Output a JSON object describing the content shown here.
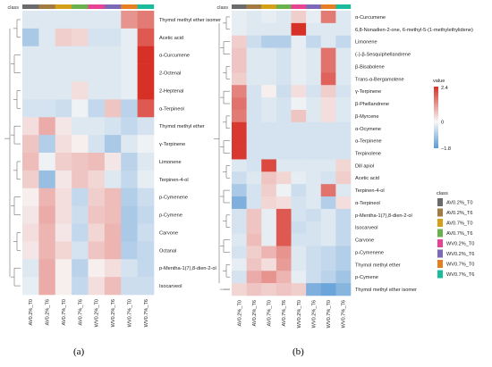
{
  "legend": {
    "class_title": "class",
    "value_title": "value",
    "value_ticks": [
      "2.4",
      "0",
      "−1.8"
    ],
    "color_low": "#5b9bd5",
    "color_mid": "#f7f7f7",
    "color_high": "#d73027"
  },
  "classes": [
    {
      "label": "AV0.2%_T0",
      "color": "#6b6b6b"
    },
    {
      "label": "AV0.2%_T6",
      "color": "#a37a42"
    },
    {
      "label": "AV0.7%_T0",
      "color": "#d4a017"
    },
    {
      "label": "AV0.7%_T6",
      "color": "#6ab04c"
    },
    {
      "label": "WV0.2%_T0",
      "color": "#e84393"
    },
    {
      "label": "WV0.2%_T6",
      "color": "#7b68b6"
    },
    {
      "label": "WV0.7%_T0",
      "color": "#e67e22"
    },
    {
      "label": "WV0.7%_T6",
      "color": "#1abc9c"
    }
  ],
  "chart_data": [
    {
      "type": "heatmap",
      "panel": "(a)",
      "columns": [
        "AV0.2%_T0",
        "AV0.2%_T6",
        "AV0.7%_T0",
        "AV0.7%_T6",
        "WV0.2%_T0",
        "WV0.2%_T6",
        "WV0.7%_T0",
        "WV0.7%_T6"
      ],
      "col_class_index": [
        0,
        1,
        2,
        3,
        4,
        5,
        6,
        7
      ],
      "rows": [
        "Thymol methyl ether isomer",
        "Acetic acid",
        "α-Curcumene",
        "2-Octenal",
        "2-Heptenal",
        "α-Terpineol",
        "Thymol methyl ether",
        "γ-Terpinene",
        "Limonene",
        "Terpinen-4-ol",
        "p-Cymenene",
        "p-Cymene",
        "Carvone",
        "Octanal",
        "p-Mentha-1(7),8-dien-2-ol",
        "Isocarveol"
      ],
      "values": [
        [
          -0.3,
          -0.3,
          -0.3,
          -0.3,
          -0.3,
          -0.3,
          1.2,
          1.5
        ],
        [
          -0.9,
          -0.3,
          0.5,
          0.4,
          -0.4,
          -0.4,
          -0.2,
          1.9
        ],
        [
          -0.3,
          -0.3,
          -0.3,
          -0.3,
          -0.3,
          -0.3,
          -0.2,
          2.4
        ],
        [
          -0.3,
          -0.3,
          -0.3,
          -0.3,
          -0.3,
          -0.3,
          -0.2,
          2.4
        ],
        [
          -0.3,
          -0.3,
          -0.3,
          0.3,
          -0.3,
          -0.3,
          -0.2,
          2.4
        ],
        [
          -0.4,
          -0.4,
          -0.5,
          -0.1,
          -0.6,
          0.6,
          -0.7,
          1.9
        ],
        [
          0.3,
          0.9,
          0.2,
          -0.3,
          -0.3,
          -0.4,
          -0.6,
          -0.4
        ],
        [
          0.6,
          -0.8,
          0.3,
          0.1,
          -0.4,
          -0.9,
          -0.3,
          -0.1
        ],
        [
          0.7,
          -0.1,
          0.5,
          0.6,
          0.7,
          0.2,
          -0.7,
          -0.3
        ],
        [
          0.5,
          -1.1,
          0.2,
          0.6,
          0.4,
          -0.3,
          -0.6,
          -0.2
        ],
        [
          0.1,
          0.8,
          0.3,
          -0.6,
          0.5,
          0.7,
          -0.8,
          -0.5
        ],
        [
          0.2,
          0.9,
          0.3,
          -0.5,
          0.6,
          0.7,
          -0.9,
          -0.6
        ],
        [
          0.3,
          0.8,
          0.2,
          -0.6,
          0.4,
          0.8,
          -0.9,
          -0.5
        ],
        [
          0.2,
          0.8,
          0.4,
          -0.4,
          0.6,
          0.8,
          -0.8,
          -0.6
        ],
        [
          -0.3,
          0.9,
          0.1,
          -0.7,
          0.1,
          0.3,
          -0.4,
          -0.6
        ],
        [
          -0.2,
          0.9,
          0.1,
          -0.6,
          0.3,
          0.7,
          -0.5,
          -0.5
        ]
      ],
      "vmin": -1.8,
      "vmax": 2.4
    },
    {
      "type": "heatmap",
      "panel": "(b)",
      "columns": [
        "AV0.2%_T0",
        "AV0.2%_T6",
        "AV0.7%_T0",
        "AV0.7%_T6",
        "WV0.2%_T0",
        "WV0.2%_T6",
        "WV0.7%_T0",
        "WV0.7%_T6"
      ],
      "col_class_index": [
        0,
        1,
        2,
        3,
        4,
        5,
        6,
        7
      ],
      "rows": [
        "α-Curcumene",
        "6,8-Nonadien-2-one, 6-methyl-5-(1-methylethylidene)",
        "Limonene",
        "(-)-β-Sesquiphellandrene",
        "β-Bisabolene",
        "Trans-α-Bergamotene",
        "γ-Terpinene",
        "β-Phellandrene",
        "β-Myrcene",
        "α-Ocymene",
        "α-Terpinene",
        "Terpinolene",
        "Dill apiol",
        "Acetic acid",
        "Terpinen-4-ol",
        "α-Terpineol",
        "p-Mentha-1(7),8-dien-2-ol",
        "Isocarveol",
        "Carvone",
        "p-Cymenene",
        "Thymol methyl ether",
        "p-Cymene",
        "Thymol methyl ether isomer"
      ],
      "values": [
        [
          -0.2,
          -0.3,
          -0.2,
          -0.3,
          0.5,
          -0.2,
          1.5,
          -0.3
        ],
        [
          -0.2,
          -0.3,
          -0.3,
          -0.3,
          2.4,
          -0.3,
          -0.3,
          -0.3
        ],
        [
          0.5,
          -0.5,
          -0.8,
          -0.8,
          -0.2,
          -0.6,
          -0.3,
          -0.6
        ],
        [
          0.6,
          -0.3,
          -0.3,
          -0.4,
          -0.2,
          -0.3,
          1.6,
          -0.3
        ],
        [
          0.6,
          -0.3,
          -0.3,
          -0.4,
          -0.2,
          -0.3,
          1.6,
          -0.3
        ],
        [
          0.5,
          -0.3,
          -0.3,
          -0.4,
          -0.2,
          -0.3,
          1.8,
          -0.3
        ],
        [
          1.4,
          -0.4,
          0.1,
          -0.5,
          0.3,
          -0.4,
          0.5,
          -0.4
        ],
        [
          1.6,
          -0.4,
          -0.3,
          -0.4,
          -0.1,
          -0.3,
          0.3,
          -0.3
        ],
        [
          1.5,
          -0.4,
          -0.3,
          -0.4,
          0.6,
          -0.3,
          0.3,
          -0.3
        ],
        [
          2.3,
          -0.4,
          -0.4,
          -0.4,
          -0.4,
          -0.4,
          -0.4,
          -0.4
        ],
        [
          2.3,
          -0.4,
          -0.4,
          -0.4,
          -0.4,
          -0.4,
          -0.4,
          -0.4
        ],
        [
          2.3,
          -0.4,
          -0.4,
          -0.4,
          -0.4,
          -0.4,
          -0.4,
          -0.4
        ],
        [
          -0.3,
          -0.4,
          2.1,
          -0.3,
          -0.3,
          -0.3,
          -0.3,
          0.4
        ],
        [
          -0.5,
          -0.3,
          0.6,
          0.4,
          -0.2,
          -0.3,
          -0.4,
          0.5
        ],
        [
          -0.9,
          -0.4,
          0.5,
          -0.1,
          -0.5,
          -0.3,
          1.6,
          -0.3
        ],
        [
          -1.4,
          -0.4,
          0.4,
          0.3,
          -0.4,
          -0.3,
          -0.8,
          0.3
        ],
        [
          -0.4,
          0.6,
          -0.2,
          1.9,
          -0.4,
          -0.5,
          -0.3,
          -0.6
        ],
        [
          -0.4,
          0.6,
          -0.2,
          1.9,
          -0.5,
          -0.4,
          -0.3,
          -0.6
        ],
        [
          -0.3,
          0.7,
          -0.2,
          1.9,
          -0.4,
          -0.4,
          -0.3,
          -0.6
        ],
        [
          -0.4,
          0.5,
          0.8,
          1.2,
          -0.3,
          -0.5,
          -0.6,
          -0.8
        ],
        [
          -0.2,
          0.6,
          0.3,
          1.1,
          -0.3,
          -0.5,
          -0.6,
          -0.8
        ],
        [
          -0.4,
          0.9,
          1.2,
          0.8,
          -0.2,
          -0.5,
          -0.7,
          -1.0
        ],
        [
          0.4,
          0.6,
          0.5,
          0.6,
          0.5,
          -1.4,
          -1.6,
          -1.3
        ]
      ],
      "vmin": -1.8,
      "vmax": 2.4
    }
  ]
}
